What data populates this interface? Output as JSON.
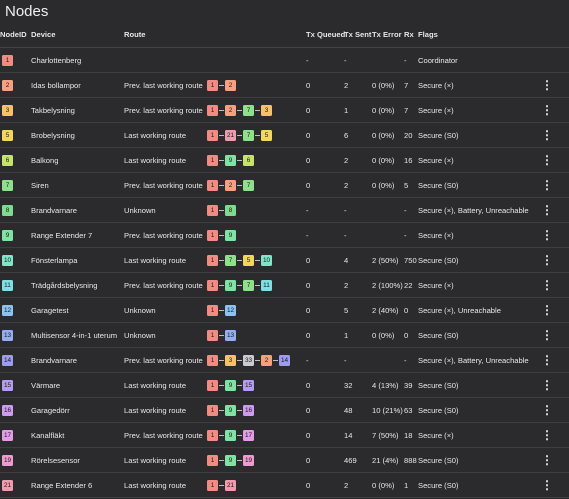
{
  "page": {
    "title": "Nodes"
  },
  "colors": {
    "1": "#f28b82",
    "2": "#f7a081",
    "3": "#f5c26b",
    "5": "#f2d75c",
    "6": "#c6e36a",
    "7": "#8fe08a",
    "8": "#7fdc8f",
    "9": "#7fe3a4",
    "10": "#7fe6c9",
    "11": "#7ee0e4",
    "12": "#8cc3f2",
    "13": "#93aef2",
    "14": "#9c9cf2",
    "15": "#b59bf2",
    "16": "#cf9bef",
    "17": "#e49be8",
    "19": "#ef9bd0",
    "21": "#f29bb0"
  },
  "columns": {
    "node_id": "NodeID",
    "device": "Device",
    "route": "Route",
    "tx_queued": "Tx Queued",
    "tx_sent": "Tx Sent",
    "tx_error": "Tx Error",
    "rx": "Rx",
    "flags": "Flags"
  },
  "rows": [
    {
      "id": "1",
      "device": "Charlottenberg",
      "route_label": "",
      "route": [],
      "tx_queued": "-",
      "tx_sent": "-",
      "tx_error": "",
      "rx": "-",
      "flags": "Coordinator",
      "menu": false
    },
    {
      "id": "2",
      "device": "Idas bollampor",
      "route_label": "Prev. last working route",
      "route": [
        "1",
        "2"
      ],
      "tx_queued": "0",
      "tx_sent": "2",
      "tx_error": "0 (0%)",
      "rx": "7",
      "flags": "Secure (×)",
      "menu": true
    },
    {
      "id": "3",
      "device": "Takbelysning",
      "route_label": "Prev. last working route",
      "route": [
        "1",
        "2",
        "7",
        "3"
      ],
      "tx_queued": "0",
      "tx_sent": "1",
      "tx_error": "0 (0%)",
      "rx": "7",
      "flags": "Secure (×)",
      "menu": true
    },
    {
      "id": "5",
      "device": "Brobelysning",
      "route_label": "Last working route",
      "route": [
        "1",
        "21",
        "7",
        "5"
      ],
      "tx_queued": "0",
      "tx_sent": "6",
      "tx_error": "0 (0%)",
      "rx": "20",
      "flags": "Secure (S0)",
      "menu": true
    },
    {
      "id": "6",
      "device": "Balkong",
      "route_label": "Last working route",
      "route": [
        "1",
        "9",
        "6"
      ],
      "tx_queued": "0",
      "tx_sent": "2",
      "tx_error": "0 (0%)",
      "rx": "16",
      "flags": "Secure (×)",
      "menu": true
    },
    {
      "id": "7",
      "device": "Siren",
      "route_label": "Prev. last working route",
      "route": [
        "1",
        "2",
        "7"
      ],
      "tx_queued": "0",
      "tx_sent": "2",
      "tx_error": "0 (0%)",
      "rx": "5",
      "flags": "Secure (S0)",
      "menu": true
    },
    {
      "id": "8",
      "device": "Brandvarnare",
      "route_label": "Unknown",
      "route": [
        "1",
        "8"
      ],
      "tx_queued": "-",
      "tx_sent": "-",
      "tx_error": "",
      "rx": "-",
      "flags": "Secure (×), Battery, Unreachable",
      "menu": true
    },
    {
      "id": "9",
      "device": "Range Extender 7",
      "route_label": "Prev. last working route",
      "route": [
        "1",
        "9"
      ],
      "tx_queued": "-",
      "tx_sent": "-",
      "tx_error": "",
      "rx": "-",
      "flags": "Secure (×)",
      "menu": true
    },
    {
      "id": "10",
      "device": "Fönsterlampa",
      "route_label": "Last working route",
      "route": [
        "1",
        "7",
        "5",
        "10"
      ],
      "tx_queued": "0",
      "tx_sent": "4",
      "tx_error": "2 (50%)",
      "rx": "750",
      "flags": "Secure (S0)",
      "menu": true
    },
    {
      "id": "11",
      "device": "Trädgårdsbelysning",
      "route_label": "Prev. last working route",
      "route": [
        "1",
        "9",
        "7",
        "11"
      ],
      "tx_queued": "0",
      "tx_sent": "2",
      "tx_error": "2 (100%)",
      "rx": "22",
      "flags": "Secure (×)",
      "menu": true
    },
    {
      "id": "12",
      "device": "Garagetest",
      "route_label": "Unknown",
      "route": [
        "1",
        "12"
      ],
      "tx_queued": "0",
      "tx_sent": "5",
      "tx_error": "2 (40%)",
      "rx": "0",
      "flags": "Secure (×), Unreachable",
      "menu": true
    },
    {
      "id": "13",
      "device": "Multisensor 4-in-1 uterum",
      "route_label": "Unknown",
      "route": [
        "1",
        "13"
      ],
      "tx_queued": "0",
      "tx_sent": "1",
      "tx_error": "0 (0%)",
      "rx": "0",
      "flags": "Secure (S0)",
      "menu": true
    },
    {
      "id": "14",
      "device": "Brandvarnare",
      "route_label": "Prev. last working route",
      "route": [
        "1",
        "3",
        "33",
        "2",
        "14"
      ],
      "tx_queued": "-",
      "tx_sent": "-",
      "tx_error": "",
      "rx": "-",
      "flags": "Secure (×), Battery, Unreachable",
      "menu": true
    },
    {
      "id": "15",
      "device": "Värmare",
      "route_label": "Last working route",
      "route": [
        "1",
        "9",
        "15"
      ],
      "tx_queued": "0",
      "tx_sent": "32",
      "tx_error": "4 (13%)",
      "rx": "39",
      "flags": "Secure (S0)",
      "menu": true
    },
    {
      "id": "16",
      "device": "Garagedörr",
      "route_label": "Last working route",
      "route": [
        "1",
        "9",
        "16"
      ],
      "tx_queued": "0",
      "tx_sent": "48",
      "tx_error": "10 (21%)",
      "rx": "63",
      "flags": "Secure (S0)",
      "menu": true
    },
    {
      "id": "17",
      "device": "Kanalfläkt",
      "route_label": "Prev. last working route",
      "route": [
        "1",
        "9",
        "17"
      ],
      "tx_queued": "0",
      "tx_sent": "14",
      "tx_error": "7 (50%)",
      "rx": "18",
      "flags": "Secure (×)",
      "menu": true
    },
    {
      "id": "19",
      "device": "Rörelsesensor",
      "route_label": "Last working route",
      "route": [
        "1",
        "9",
        "19"
      ],
      "tx_queued": "0",
      "tx_sent": "469",
      "tx_error": "21 (4%)",
      "rx": "888",
      "flags": "Secure (S0)",
      "menu": true
    },
    {
      "id": "21",
      "device": "Range Extender 6",
      "route_label": "Last working route",
      "route": [
        "1",
        "21"
      ],
      "tx_queued": "0",
      "tx_sent": "2",
      "tx_error": "0 (0%)",
      "rx": "1",
      "flags": "Secure (S0)",
      "menu": true
    }
  ],
  "icons": {
    "menu": "more-vertical-icon",
    "menu_glyph": "⋮"
  }
}
